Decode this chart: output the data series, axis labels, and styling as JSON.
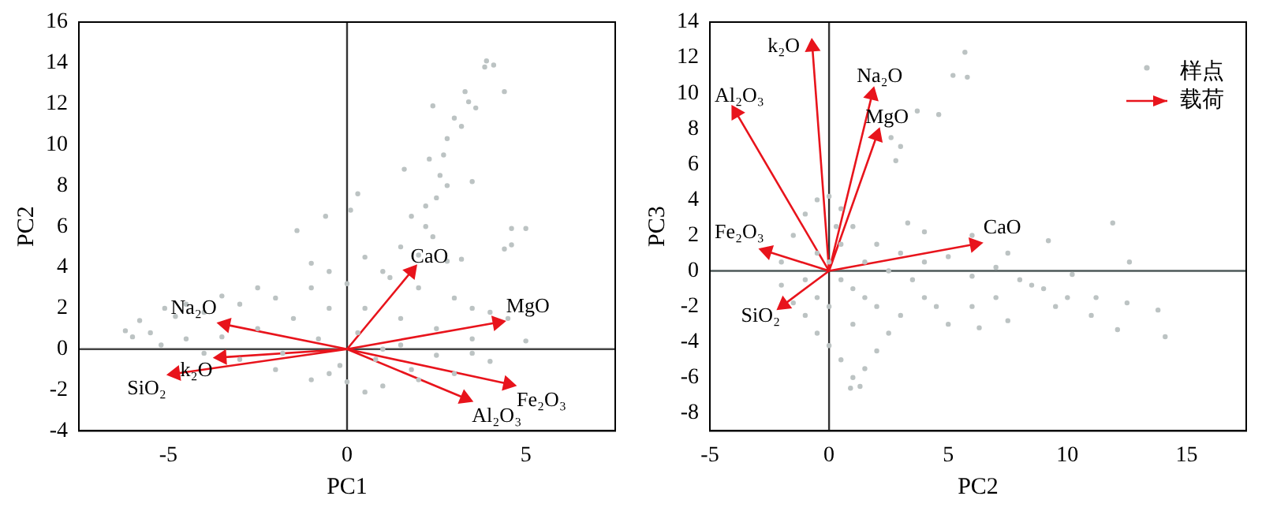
{
  "chart_data": [
    {
      "type": "scatter",
      "xlabel": "PC1",
      "ylabel": "PC2",
      "xlim": [
        -7.5,
        7.5
      ],
      "xticks": [
        -5,
        0,
        5
      ],
      "ylim": [
        -4,
        16
      ],
      "yticks": [
        -4,
        -2,
        0,
        2,
        4,
        6,
        8,
        10,
        12,
        14,
        16
      ],
      "grid": false,
      "legend": false,
      "ref_lines": [
        {
          "axis": "x",
          "value": 0,
          "color": "#333333"
        },
        {
          "axis": "y",
          "value": 0,
          "color": "#454545"
        }
      ],
      "series": [
        {
          "type": "scatter",
          "color": "#bcc3c3",
          "marker": "circle",
          "x": [
            3.9,
            3.85,
            4.1,
            4.4,
            3.3,
            2.4,
            3.4,
            3.6,
            3.0,
            3.2,
            2.8,
            2.7,
            2.3,
            1.6,
            3.5,
            2.8,
            2.5,
            0.3,
            0.1,
            -0.6,
            -1.4,
            4.6,
            5.0,
            4.6,
            4.4,
            2.2,
            1.5,
            2.4,
            2.0,
            3.2,
            -1.0,
            -0.5,
            0.5,
            1.2,
            -2.5,
            -3.5,
            -4.5,
            -5.1,
            -5.8,
            -6.2,
            -6.0,
            -5.5,
            -4.8,
            -4.0,
            -3.0,
            -2.0,
            -1.0,
            0,
            1.0,
            2.0,
            3.0,
            3.5,
            4.0,
            4.5,
            5.0,
            3.5,
            2.5,
            1.5,
            0.5,
            -0.5,
            -1.5,
            -2.5,
            -3.5,
            -4.5,
            -5.2,
            -4.0,
            -3.0,
            -2.0,
            -1.0,
            0,
            0.5,
            1.0,
            2.0,
            3.0,
            4.0,
            -0.2,
            0.8,
            1.5,
            -0.8,
            -1.8,
            0.3,
            1.0,
            2.5,
            3.5,
            -0.5,
            1.8,
            2.8,
            1.8,
            2.2,
            2.6
          ],
          "values": [
            14.1,
            13.8,
            13.9,
            12.6,
            12.6,
            11.9,
            12.1,
            11.8,
            11.3,
            10.9,
            10.3,
            9.5,
            9.3,
            8.8,
            8.2,
            8.0,
            7.4,
            7.6,
            6.8,
            6.5,
            5.8,
            5.9,
            5.9,
            5.1,
            4.9,
            6.0,
            5.0,
            5.5,
            4.6,
            4.4,
            4.2,
            3.8,
            4.5,
            3.5,
            3.0,
            2.6,
            2.2,
            2.0,
            1.4,
            0.9,
            0.6,
            0.8,
            1.6,
            1.8,
            2.2,
            2.5,
            3.0,
            3.2,
            3.8,
            3.0,
            2.5,
            2.0,
            1.8,
            1.5,
            0.4,
            0.5,
            1.0,
            1.5,
            2.0,
            2.0,
            1.5,
            1.0,
            0.6,
            0.5,
            0.2,
            -0.2,
            -0.5,
            -1.0,
            -1.5,
            -1.6,
            -2.1,
            -1.8,
            -1.5,
            -1.2,
            -0.6,
            -0.8,
            -0.5,
            0.2,
            0.5,
            -0.2,
            0.8,
            0.0,
            -0.3,
            -0.2,
            -1.2,
            -1.0,
            4.3,
            6.5,
            7.0,
            8.5
          ]
        },
        {
          "type": "line",
          "color": "#e8141c",
          "marker": "triangle",
          "line_style": "solid",
          "x": [
            0,
            1.8,
            null,
            0,
            4.2,
            null,
            0,
            4.5,
            null,
            0,
            3.3,
            null,
            0,
            -3.4,
            null,
            0,
            -3.5,
            null,
            0,
            -4.8
          ],
          "values": [
            0,
            3.8,
            null,
            0,
            1.3,
            null,
            0,
            -1.7,
            null,
            0,
            -2.4,
            null,
            0,
            1.2,
            null,
            0,
            -0.4,
            null,
            0,
            -1.2
          ]
        }
      ],
      "annotations": [
        {
          "text": "CaO",
          "x": 1.8,
          "y": 3.8
        },
        {
          "text": "MgO",
          "x": 4.2,
          "y": 1.3
        },
        {
          "text": "Fe₂O₃",
          "x": 4.5,
          "y": -1.7
        },
        {
          "text": "Al₂O₃",
          "x": 3.3,
          "y": -2.4
        },
        {
          "text": "Na₂O",
          "x": -3.4,
          "y": 1.2
        },
        {
          "text": "k₂O",
          "x": -3.5,
          "y": -0.4
        },
        {
          "text": "SiO₂",
          "x": -4.8,
          "y": -1.2
        }
      ]
    },
    {
      "type": "scatter",
      "xlabel": "PC2",
      "ylabel": "PC3",
      "xlim": [
        -5,
        17.5
      ],
      "xticks": [
        -5,
        0,
        5,
        10,
        15
      ],
      "ylim": [
        -9,
        14
      ],
      "yticks": [
        -8,
        -6,
        -4,
        -2,
        0,
        2,
        4,
        6,
        8,
        10,
        12,
        14
      ],
      "grid": false,
      "legend": "top right",
      "ref_lines": [
        {
          "axis": "x",
          "value": 0,
          "color": "#333333"
        },
        {
          "axis": "y",
          "value": 0,
          "color": "#4d5858"
        }
      ],
      "series": [
        {
          "type": "scatter",
          "name": "样点",
          "color": "#bcc3c3",
          "marker": "circle",
          "x": [
            5.7,
            5.2,
            5.8,
            3.7,
            4.6,
            3.0,
            2.6,
            2.8,
            3.3,
            4.0,
            6.0,
            7.5,
            9.2,
            11.9,
            12.6,
            10.2,
            11.2,
            12.5,
            13.8,
            14.1,
            12.1,
            11.0,
            10.0,
            9.0,
            8.0,
            7.0,
            6.0,
            5.0,
            4.0,
            3.0,
            2.0,
            1.0,
            0.5,
            0,
            -0.5,
            -1.0,
            -1.5,
            -2.0,
            -2.0,
            -1.5,
            -1.0,
            -0.5,
            0,
            0.5,
            1.0,
            0.9,
            1.3,
            1.5,
            2.0,
            2.5,
            3.0,
            5.0,
            6.0,
            7.0,
            4.0,
            2.0,
            1.0,
            0.5,
            0.0,
            -0.5,
            -1.0,
            0.5,
            1.5,
            2.5,
            3.5,
            1.0,
            0.0,
            -0.5,
            0.3,
            1.5,
            8.5,
            9.5,
            7.5,
            6.3,
            4.5
          ],
          "values": [
            12.3,
            11.0,
            10.9,
            9.0,
            8.8,
            7.0,
            7.5,
            6.2,
            2.7,
            2.2,
            2.0,
            1.0,
            1.7,
            2.7,
            0.5,
            -0.2,
            -1.5,
            -1.8,
            -2.2,
            -3.7,
            -3.3,
            -2.5,
            -1.5,
            -1.0,
            -0.5,
            0.2,
            -0.3,
            0.8,
            0.5,
            1.0,
            1.5,
            2.5,
            3.5,
            4.2,
            4.0,
            3.2,
            2.0,
            0.5,
            -0.8,
            -1.8,
            -2.5,
            -3.5,
            -4.2,
            -5.0,
            -6.0,
            -6.6,
            -6.5,
            -5.5,
            -4.5,
            -3.5,
            -2.5,
            -3.0,
            -2.0,
            -1.5,
            -1.5,
            -2.0,
            -1.0,
            -0.5,
            0.5,
            1.0,
            -0.5,
            1.5,
            0.5,
            0.0,
            -0.5,
            -3.0,
            -2.0,
            -1.5,
            2.5,
            -1.5,
            -0.8,
            -2.0,
            -2.8,
            -3.2,
            -2.0
          ]
        },
        {
          "type": "line",
          "name": "载荷",
          "color": "#e8141c",
          "marker": "triangle",
          "line_style": "solid",
          "x": [
            0,
            -0.7,
            null,
            0,
            -3.9,
            null,
            0,
            1.8,
            null,
            0,
            2.0,
            null,
            0,
            6.1,
            null,
            0,
            -2.6,
            null,
            0,
            -1.9
          ],
          "values": [
            0,
            12.6,
            null,
            0,
            8.9,
            null,
            0,
            9.9,
            null,
            0,
            7.6,
            null,
            0,
            1.5,
            null,
            0,
            1.1,
            null,
            0,
            -1.9
          ]
        }
      ],
      "annotations": [
        {
          "text": "k₂O",
          "x": -0.7,
          "y": 12.6
        },
        {
          "text": "Al₂O₃",
          "x": -3.9,
          "y": 8.9
        },
        {
          "text": "Na₂O",
          "x": 1.8,
          "y": 9.9
        },
        {
          "text": "MgO",
          "x": 2.0,
          "y": 7.6
        },
        {
          "text": "CaO",
          "x": 6.1,
          "y": 1.5
        },
        {
          "text": "Fe₂O₃",
          "x": -2.6,
          "y": 1.1
        },
        {
          "text": "SiO₂",
          "x": -1.9,
          "y": -1.9
        }
      ]
    }
  ]
}
